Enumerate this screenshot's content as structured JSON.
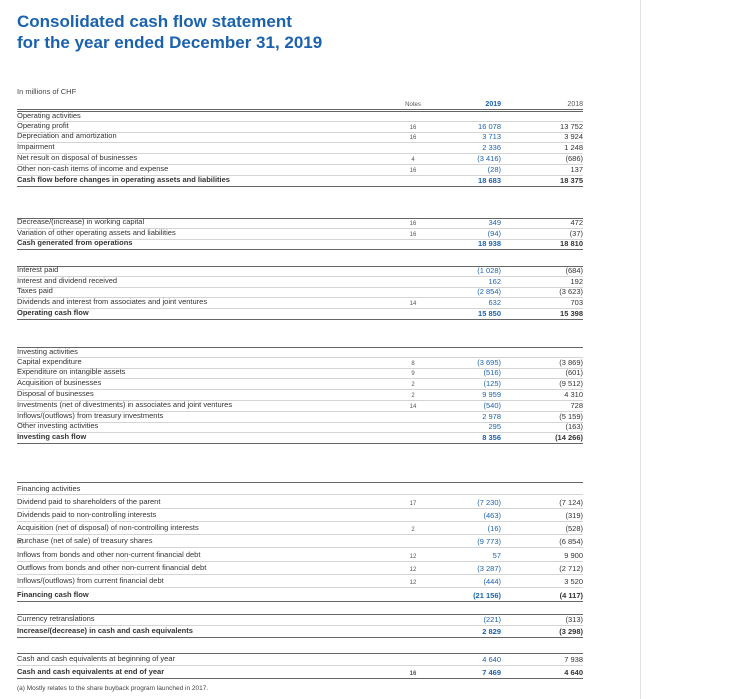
{
  "title": [
    "Consolidated cash flow statement",
    "for the year ended December 31, 2019"
  ],
  "units": "In millions of CHF",
  "columns": [
    "Notes",
    "2019",
    "2018"
  ],
  "sections": [
    {
      "heading": "Operating activities",
      "rows": [
        {
          "label": "Operating profit",
          "note": "16",
          "values": [
            "16 078",
            "13 752"
          ]
        },
        {
          "label": "Depreciation and amortization",
          "note": "16",
          "values": [
            "3 713",
            "3 924"
          ]
        },
        {
          "label": "Impairment",
          "values": [
            "2 336",
            "1 248"
          ]
        },
        {
          "label": "Net result on disposal of businesses",
          "note": "4",
          "values": [
            "(3 416)",
            "(686)"
          ]
        },
        {
          "label": "Other non-cash items of income and expense",
          "note": "16",
          "values": [
            "(28)",
            "137"
          ]
        }
      ],
      "total": {
        "label": "Cash flow before changes in operating assets and liabilities",
        "values": [
          "18 683",
          "18 375"
        ]
      }
    },
    {
      "rows": [
        {
          "label": "Decrease/(increase) in working capital",
          "note": "16",
          "values": [
            "349",
            "472"
          ]
        },
        {
          "label": "Variation of other operating assets and liabilities",
          "note": "16",
          "values": [
            "(94)",
            "(37)"
          ]
        }
      ],
      "total": {
        "label": "Cash generated from operations",
        "values": [
          "18 938",
          "18 810"
        ]
      }
    },
    {
      "rows": [
        {
          "label": "Interest paid",
          "values": [
            "(1 028)",
            "(684)"
          ]
        },
        {
          "label": "Interest and dividend received",
          "values": [
            "162",
            "192"
          ]
        },
        {
          "label": "Taxes paid",
          "values": [
            "(2 854)",
            "(3 623)"
          ]
        },
        {
          "label": "Dividends and interest from associates and joint ventures",
          "note": "14",
          "values": [
            "632",
            "703"
          ]
        }
      ],
      "total": {
        "label": "Operating cash flow",
        "values": [
          "15 850",
          "15 398"
        ]
      }
    },
    {
      "heading": "Investing activities",
      "rows": [
        {
          "label": "Capital expenditure",
          "note": "8",
          "values": [
            "(3 695)",
            "(3 869)"
          ]
        },
        {
          "label": "Expenditure on intangible assets",
          "note": "9",
          "values": [
            "(516)",
            "(601)"
          ]
        },
        {
          "label": "Acquisition of businesses",
          "note": "2",
          "values": [
            "(125)",
            "(9 512)"
          ]
        },
        {
          "label": "Disposal of businesses",
          "note": "2",
          "values": [
            "9 959",
            "4 310"
          ]
        },
        {
          "label": "Investments (net of divestments) in associates and joint ventures",
          "note": "14",
          "values": [
            "(540)",
            "728"
          ]
        },
        {
          "label": "Inflows/(outflows) from treasury investments",
          "values": [
            "2 978",
            "(5 159)"
          ]
        },
        {
          "label": "Other investing activities",
          "values": [
            "295",
            "(163)"
          ]
        }
      ],
      "total": {
        "label": "Investing cash flow",
        "values": [
          "8 356",
          "(14 266)"
        ]
      }
    },
    {
      "heading": "Financing activities",
      "rows": [
        {
          "label": "Dividend paid to shareholders of the parent",
          "note": "17",
          "values": [
            "(7 230)",
            "(7 124)"
          ]
        },
        {
          "label": "Dividends paid to non-controlling interests",
          "values": [
            "(463)",
            "(319)"
          ]
        },
        {
          "label": "Acquisition (net of disposal) of non-controlling interests",
          "note": "2",
          "values": [
            "(16)",
            "(528)"
          ]
        },
        {
          "label": "Purchase (net of sale) of treasury shares",
          "footnote_ref": "(a)",
          "values": [
            "(9 773)",
            "(6 854)"
          ]
        },
        {
          "label": "Inflows from bonds and other non-current financial debt",
          "note": "12",
          "values": [
            "57",
            "9 900"
          ]
        },
        {
          "label": "Outflows from bonds and other non-current financial debt",
          "note": "12",
          "values": [
            "(3 287)",
            "(2 712)"
          ]
        },
        {
          "label": "Inflows/(outflows) from current financial debt",
          "note": "12",
          "values": [
            "(444)",
            "3 520"
          ]
        }
      ],
      "total": {
        "label": "Financing cash flow",
        "values": [
          "(21 156)",
          "(4 117)"
        ]
      }
    },
    {
      "rows": [
        {
          "label": "Currency retranslations",
          "values": [
            "(221)",
            "(313)"
          ]
        }
      ],
      "total": {
        "label": "Increase/(decrease) in cash and cash equivalents",
        "values": [
          "2 829",
          "(3 298)"
        ]
      }
    },
    {
      "rows": [
        {
          "label": "Cash and cash equivalents at beginning of year",
          "values": [
            "4 640",
            "7 938"
          ]
        }
      ],
      "total": {
        "label": "Cash and cash equivalents at end of year",
        "note": "16",
        "values": [
          "7 469",
          "4 640"
        ]
      }
    }
  ],
  "footnote": {
    "ref": "(a)",
    "text": "Mostly relates to the share buyback program launched in 2017."
  }
}
